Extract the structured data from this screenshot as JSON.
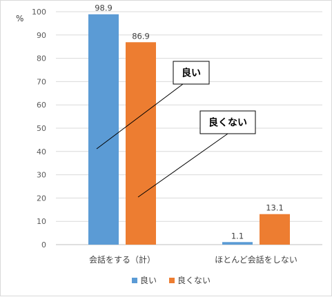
{
  "chart_data": {
    "type": "bar",
    "unit_label": "%",
    "categories": [
      "会話をする（計）",
      "ほとんど会話をしない"
    ],
    "series": [
      {
        "name": "良い",
        "values": [
          98.9,
          1.1
        ],
        "color": "#5b9bd5"
      },
      {
        "name": "良くない",
        "values": [
          86.9,
          13.1
        ],
        "color": "#ed7d31"
      }
    ],
    "ylim": [
      0,
      100
    ],
    "yticks": [
      0,
      10,
      20,
      30,
      40,
      50,
      60,
      70,
      80,
      90,
      100
    ],
    "grid": true,
    "legend_position": "bottom",
    "callouts": [
      "良い",
      "良くない"
    ]
  }
}
